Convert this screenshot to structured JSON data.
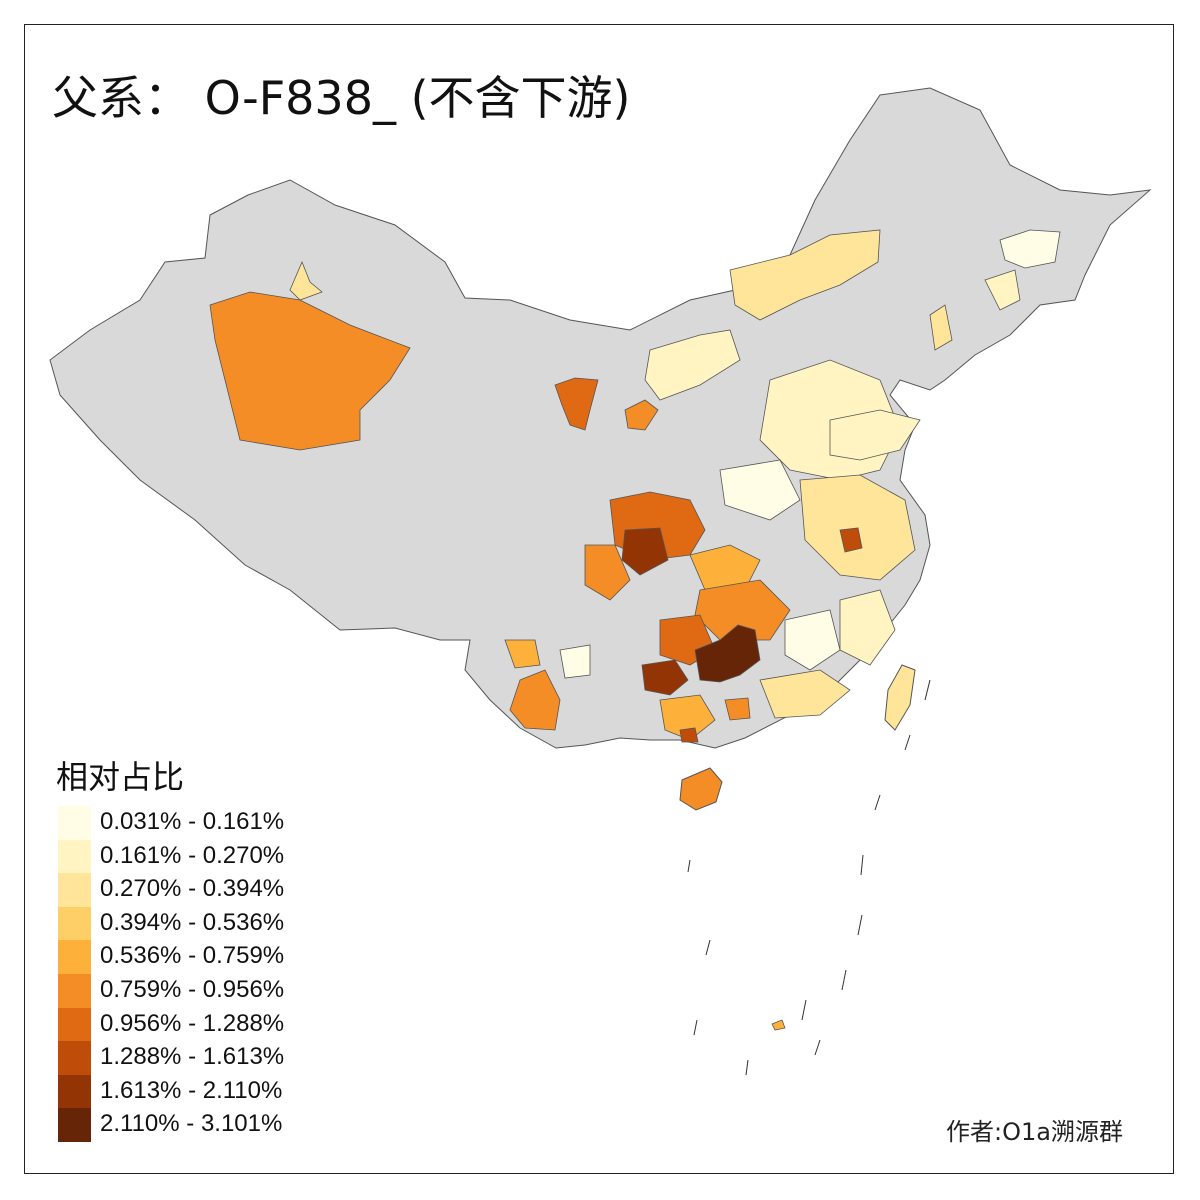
{
  "title": "父系： O-F838_ (不含下游)",
  "legend": {
    "title": "相对占比",
    "classes": [
      {
        "label": "0.031% - 0.161%",
        "color": "#fffde6"
      },
      {
        "label": "0.161% - 0.270%",
        "color": "#fff4c2"
      },
      {
        "label": "0.270% - 0.394%",
        "color": "#fee59a"
      },
      {
        "label": "0.394% - 0.536%",
        "color": "#fecf66"
      },
      {
        "label": "0.536% - 0.759%",
        "color": "#feb13a"
      },
      {
        "label": "0.759% - 0.956%",
        "color": "#f48d26"
      },
      {
        "label": "0.956% - 1.288%",
        "color": "#e06a14"
      },
      {
        "label": "1.288% - 1.613%",
        "color": "#bf4c08"
      },
      {
        "label": "1.613% - 2.110%",
        "color": "#933404"
      },
      {
        "label": "2.110% - 3.101%",
        "color": "#662506"
      }
    ]
  },
  "no_data_color": "#d9d9d9",
  "credit": "作者:O1a溯源群"
}
